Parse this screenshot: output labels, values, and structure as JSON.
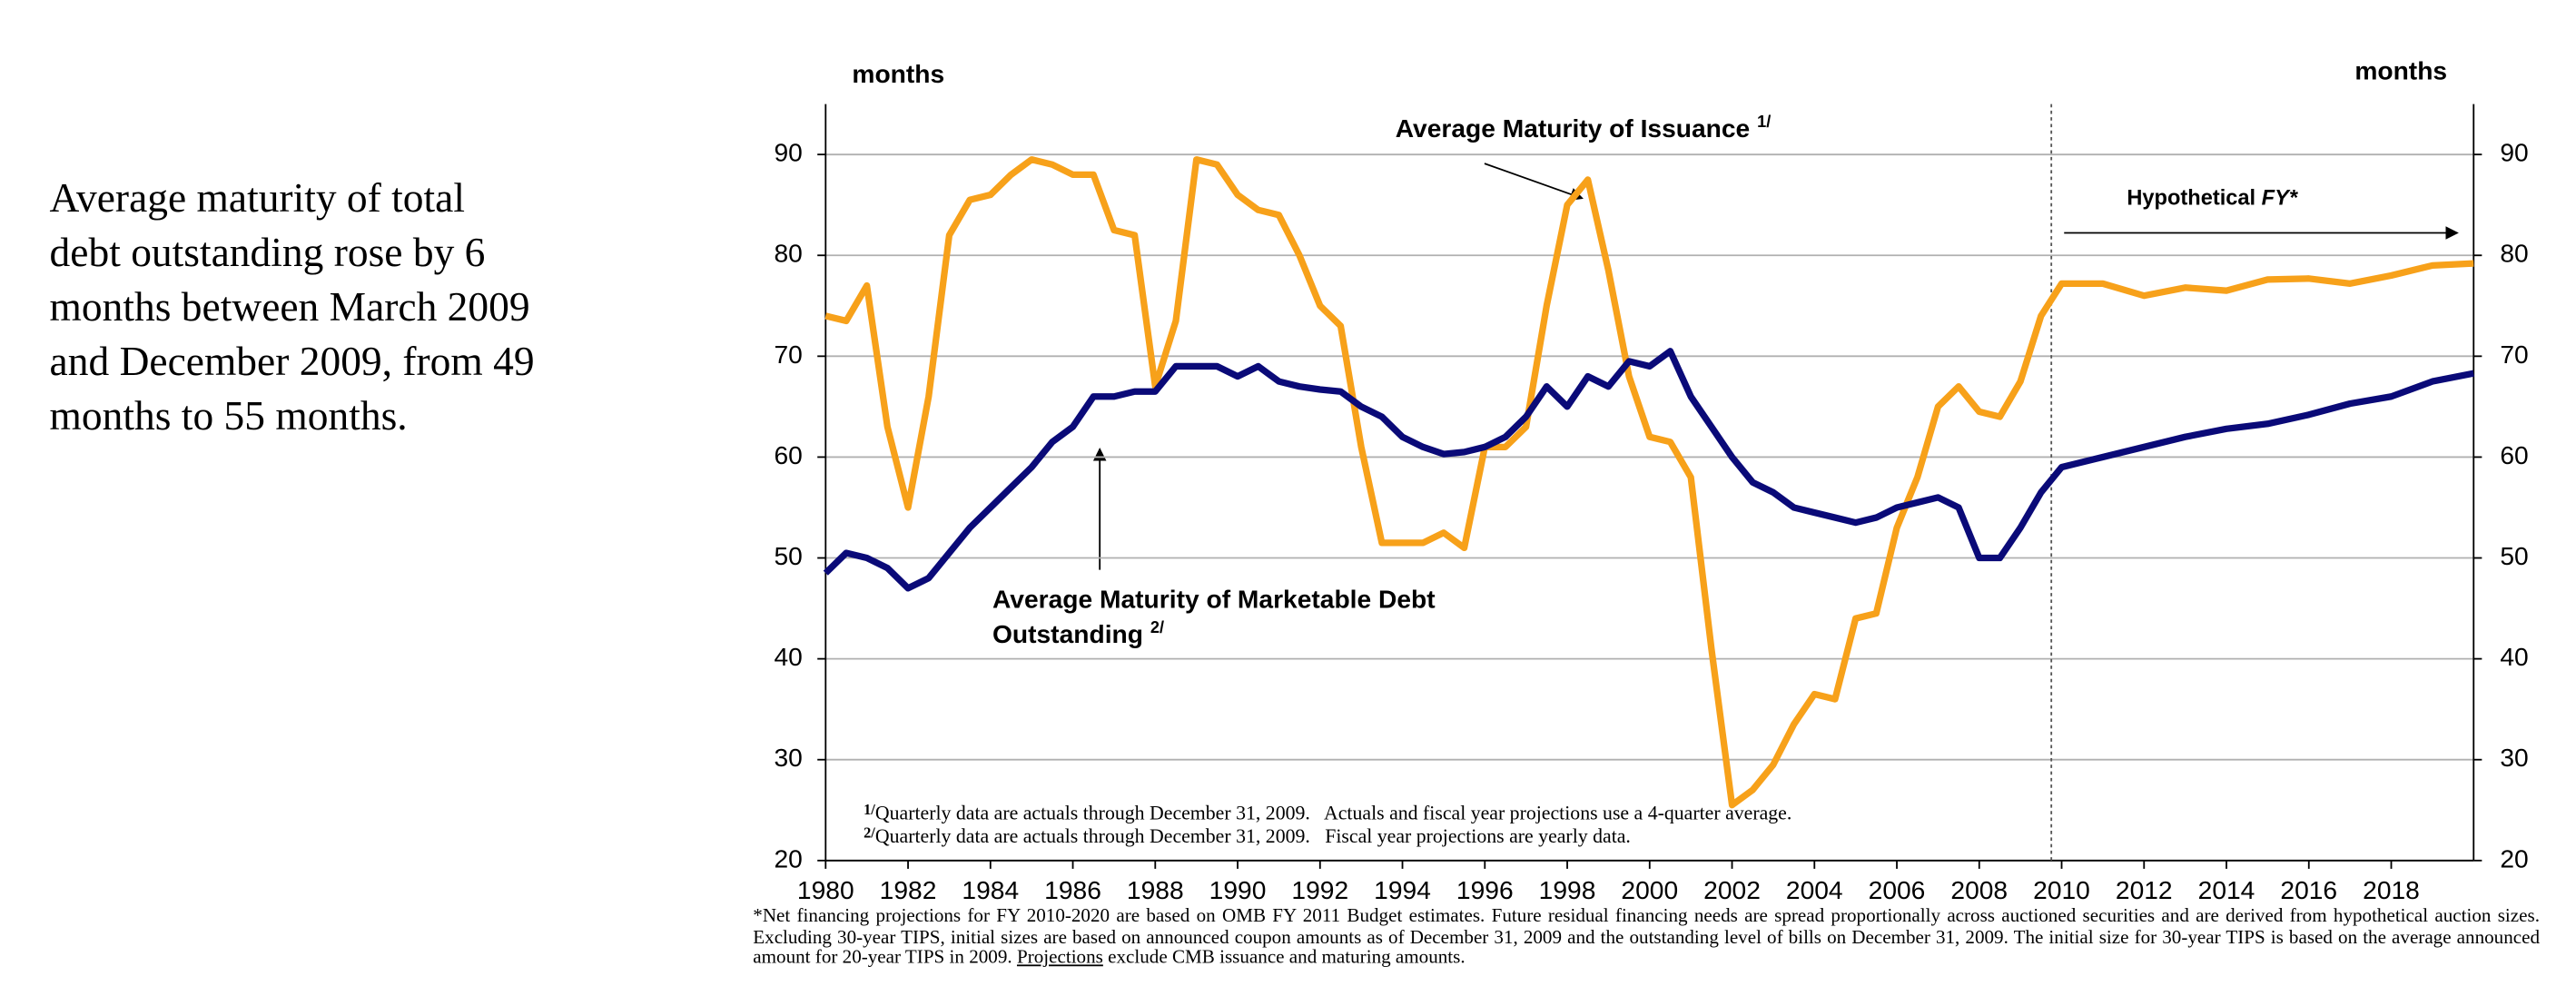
{
  "side_text": "Average maturity of total debt outstanding rose by 6 months between March 2009 and December 2009, from 49 months to 55 months.",
  "chart_data": {
    "type": "line",
    "y_axis_label": "months",
    "y2_axis_label": "months",
    "hypothetical_label": "Hypothetical",
    "hypothetical_label_italic": "FY*",
    "divider_x": 2009.75,
    "series_superscripts": [
      "1/",
      "2/"
    ],
    "footnotes": [
      {
        "mark": "1/",
        "text": "Quarterly data are actuals through December 31, 2009.   Actuals and fiscal year projections use a 4-quarter average."
      },
      {
        "mark": "2/",
        "text": "Quarterly data are actuals through December 31, 2009.   Fiscal year projections are yearly data."
      }
    ],
    "note": [
      "*Net financing projections for FY 2010-2020 are based on OMB FY 2011 Budget estimates. Future residual financing needs are spread proportionally across auctioned securities and are derived from hypothetical auction sizes. Excluding 30-year TIPS, initial sizes are based on announced coupon amounts as of December 31, 2009 and the outstanding level of bills on December 31, 2009. The initial size for 30-year TIPS is based on the average announced amount for 20-year TIPS in 2009.",
      "Projections",
      "exclude CMB issuance and maturing amounts."
    ],
    "x": [
      1980,
      1980.5,
      1981,
      1981.5,
      1982,
      1982.5,
      1983,
      1983.5,
      1984,
      1984.5,
      1985,
      1985.5,
      1986,
      1986.5,
      1987,
      1987.5,
      1988,
      1988.5,
      1989,
      1989.5,
      1990,
      1990.5,
      1991,
      1991.5,
      1992,
      1992.5,
      1993,
      1993.5,
      1994,
      1994.5,
      1995,
      1995.5,
      1996,
      1996.5,
      1997,
      1997.5,
      1998,
      1998.5,
      1999,
      1999.5,
      2000,
      2000.5,
      2001,
      2001.5,
      2002,
      2002.5,
      2003,
      2003.5,
      2004,
      2004.5,
      2005,
      2005.5,
      2006,
      2006.5,
      2007,
      2007.5,
      2008,
      2008.5,
      2009,
      2009.5,
      2010,
      2011,
      2012,
      2013,
      2014,
      2015,
      2016,
      2017,
      2018,
      2019,
      2020
    ],
    "series": [
      {
        "name": "Average Maturity of Issuance",
        "color": "#F7A11A",
        "values": [
          74,
          73.5,
          77,
          63,
          55,
          66,
          82,
          85.5,
          86,
          88,
          89.5,
          89,
          88,
          88,
          82.5,
          82,
          67,
          73.5,
          89.5,
          89,
          86,
          84.5,
          84,
          80,
          75,
          73,
          61,
          51.5,
          51.5,
          51.5,
          52.5,
          51,
          61,
          61,
          63,
          75,
          85,
          87.5,
          78.5,
          68,
          62,
          61.5,
          58,
          41,
          25.5,
          27,
          29.5,
          33.5,
          36.5,
          36,
          44,
          44.5,
          53,
          58,
          65,
          67,
          64.5,
          64,
          67.5,
          74,
          77.2,
          77.2,
          76,
          76.8,
          76.5,
          77.6,
          77.7,
          77.2,
          78,
          79,
          79.2
        ]
      },
      {
        "name": "Average Maturity of Marketable Debt Outstanding",
        "color": "#0A0A78",
        "values": [
          48.5,
          50.5,
          50,
          49,
          47,
          48,
          50.5,
          53,
          55,
          57,
          59,
          61.5,
          63,
          66,
          66,
          66.5,
          66.5,
          69,
          69,
          69,
          68,
          69,
          67.5,
          67,
          66.7,
          66.5,
          65,
          64,
          62,
          61,
          60.3,
          60.5,
          61,
          62,
          64,
          67,
          65,
          68,
          67,
          69.5,
          69,
          70.5,
          66,
          63,
          60,
          57.5,
          56.5,
          55,
          54.5,
          54,
          53.5,
          54,
          55,
          55.5,
          56,
          55,
          50,
          50,
          53,
          56.5,
          59,
          60,
          61,
          62,
          62.8,
          63.3,
          64.2,
          65.3,
          66,
          67.5,
          68.3
        ]
      }
    ],
    "xlim": [
      1980,
      2020
    ],
    "xticks": [
      1980,
      1982,
      1984,
      1986,
      1988,
      1990,
      1992,
      1994,
      1996,
      1998,
      2000,
      2002,
      2004,
      2006,
      2008,
      2010,
      2012,
      2014,
      2016,
      2018
    ],
    "ylim": [
      20,
      95
    ],
    "yticks": [
      20,
      30,
      40,
      50,
      60,
      70,
      80,
      90
    ],
    "y2lim": [
      20,
      95
    ],
    "y2ticks": [
      20,
      30,
      40,
      50,
      60,
      70,
      80,
      90
    ],
    "grid": true
  }
}
